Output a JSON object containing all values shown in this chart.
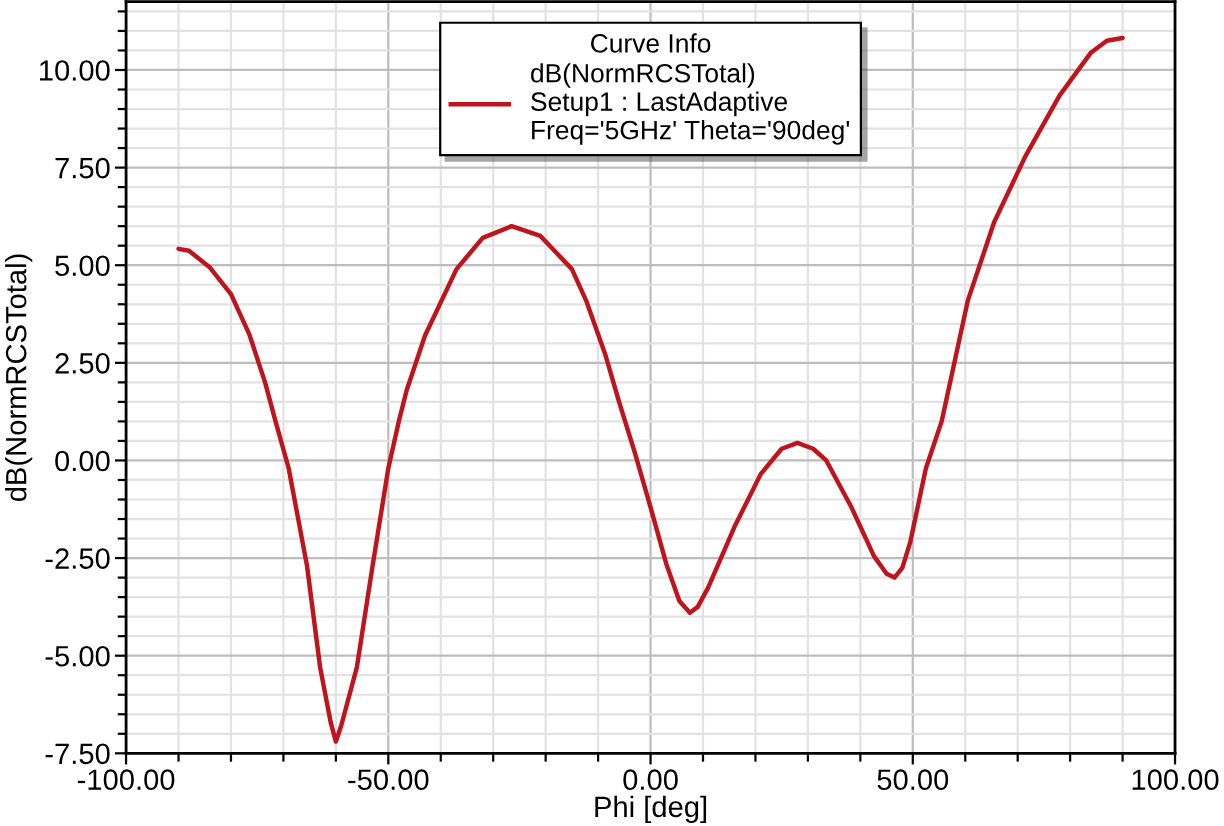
{
  "chart_data": {
    "type": "line",
    "xlabel": "Phi [deg]",
    "ylabel": "dB(NormRCSTotal)",
    "legend_title": "Curve Info",
    "legend": "top",
    "grid": true,
    "line_style": "solid",
    "series": [
      {
        "name": "dB(NormRCSTotal)\nSetup1 : LastAdaptive\nFreq='5GHz' Theta='90deg'",
        "color": "#c0141c",
        "x": [
          -90,
          -88,
          -84,
          -80,
          -76.5,
          -73.5,
          -71.5,
          -69,
          -65.5,
          -63,
          -61,
          -60,
          -59,
          -56,
          -53,
          -50,
          -48,
          -46.5,
          -43,
          -37,
          -32,
          -26.5,
          -21,
          -15,
          -12.3,
          -8.6,
          -6,
          -3,
          0,
          3,
          5.5,
          7.5,
          9,
          11,
          16,
          21,
          25,
          28,
          31,
          33.5,
          38.3,
          42.6,
          45,
          46.5,
          48,
          49.5,
          52.5,
          55.5,
          60.5,
          65.5,
          71.5,
          78,
          84,
          87,
          90
        ],
        "values": [
          5.42,
          5.37,
          4.94,
          4.26,
          3.23,
          2.0,
          1.0,
          -0.2,
          -2.7,
          -5.3,
          -6.7,
          -7.2,
          -6.8,
          -5.3,
          -2.7,
          -0.2,
          1.0,
          1.8,
          3.2,
          4.9,
          5.7,
          6.0,
          5.75,
          4.9,
          4.1,
          2.7,
          1.5,
          0.2,
          -1.2,
          -2.65,
          -3.6,
          -3.9,
          -3.75,
          -3.25,
          -1.7,
          -0.35,
          0.3,
          0.45,
          0.3,
          0.0,
          -1.2,
          -2.45,
          -2.9,
          -3.0,
          -2.75,
          -2.1,
          -0.2,
          1.0,
          4.1,
          6.1,
          7.8,
          9.35,
          10.45,
          10.75,
          10.82
        ]
      }
    ],
    "xlim": [
      -100,
      100
    ],
    "xticks": [
      {
        "value": -100,
        "label": "-100.00"
      },
      {
        "value": -90,
        "label": null
      },
      {
        "value": -80,
        "label": null
      },
      {
        "value": -70,
        "label": null
      },
      {
        "value": -60,
        "label": null
      },
      {
        "value": -50,
        "label": "-50.00"
      },
      {
        "value": -40,
        "label": null
      },
      {
        "value": -30,
        "label": null
      },
      {
        "value": -20,
        "label": null
      },
      {
        "value": -10,
        "label": null
      },
      {
        "value": 0,
        "label": "0.00"
      },
      {
        "value": 10,
        "label": null
      },
      {
        "value": 20,
        "label": null
      },
      {
        "value": 30,
        "label": null
      },
      {
        "value": 40,
        "label": null
      },
      {
        "value": 50,
        "label": "50.00"
      },
      {
        "value": 60,
        "label": null
      },
      {
        "value": 70,
        "label": null
      },
      {
        "value": 80,
        "label": null
      },
      {
        "value": 90,
        "label": null
      },
      {
        "value": 100,
        "label": "100.00"
      }
    ],
    "ylim": [
      -7.5,
      11.75
    ],
    "yticks": [
      {
        "value": -7.5,
        "label": "-7.50"
      },
      {
        "value": -7,
        "label": null
      },
      {
        "value": -6.5,
        "label": null
      },
      {
        "value": -6,
        "label": null
      },
      {
        "value": -5.5,
        "label": null
      },
      {
        "value": -5,
        "label": "-5.00"
      },
      {
        "value": -4.5,
        "label": null
      },
      {
        "value": -4,
        "label": null
      },
      {
        "value": -3.5,
        "label": null
      },
      {
        "value": -3,
        "label": null
      },
      {
        "value": -2.5,
        "label": "-2.50"
      },
      {
        "value": -2,
        "label": null
      },
      {
        "value": -1.5,
        "label": null
      },
      {
        "value": -1,
        "label": null
      },
      {
        "value": -0.5,
        "label": null
      },
      {
        "value": 0,
        "label": "0.00"
      },
      {
        "value": 0.5,
        "label": null
      },
      {
        "value": 1,
        "label": null
      },
      {
        "value": 1.5,
        "label": null
      },
      {
        "value": 2,
        "label": null
      },
      {
        "value": 2.5,
        "label": "2.50"
      },
      {
        "value": 3,
        "label": null
      },
      {
        "value": 3.5,
        "label": null
      },
      {
        "value": 4,
        "label": null
      },
      {
        "value": 4.5,
        "label": null
      },
      {
        "value": 5,
        "label": "5.00"
      },
      {
        "value": 5.5,
        "label": null
      },
      {
        "value": 6,
        "label": null
      },
      {
        "value": 6.5,
        "label": null
      },
      {
        "value": 7,
        "label": null
      },
      {
        "value": 7.5,
        "label": "7.50"
      },
      {
        "value": 8,
        "label": null
      },
      {
        "value": 8.5,
        "label": null
      },
      {
        "value": 9,
        "label": null
      },
      {
        "value": 9.5,
        "label": null
      },
      {
        "value": 10,
        "label": "10.00"
      },
      {
        "value": 10.5,
        "label": null
      },
      {
        "value": 11,
        "label": null
      },
      {
        "value": 11.5,
        "label": null
      }
    ]
  }
}
